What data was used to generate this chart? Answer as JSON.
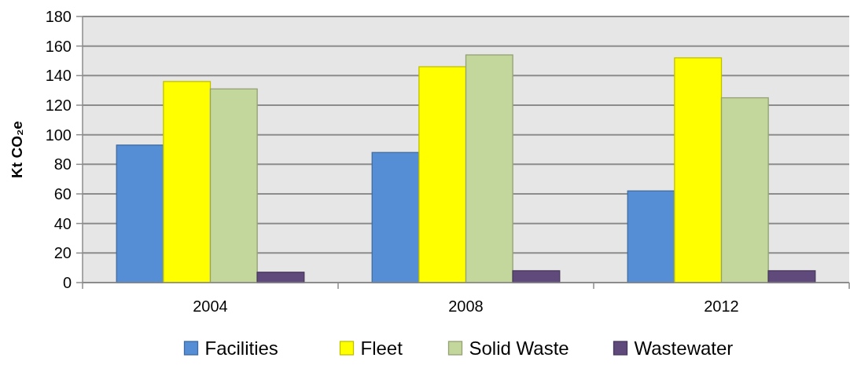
{
  "chart_data": {
    "type": "bar",
    "ylabel": "Kt CO₂e",
    "categories": [
      "2004",
      "2008",
      "2012"
    ],
    "series": [
      {
        "name": "Facilities",
        "color": "#558ed5",
        "values": [
          93,
          88,
          62
        ]
      },
      {
        "name": "Fleet",
        "color": "#ffff00",
        "values": [
          136,
          146,
          152
        ]
      },
      {
        "name": "Solid Waste",
        "color": "#c3d69b",
        "values": [
          131,
          154,
          125
        ]
      },
      {
        "name": "Wastewater",
        "color": "#604a7b",
        "values": [
          7,
          8,
          8
        ]
      }
    ],
    "ylim": [
      0,
      180
    ],
    "yticks": [
      0,
      20,
      40,
      60,
      80,
      100,
      120,
      140,
      160,
      180
    ],
    "grid": "y",
    "legend": "bottom"
  }
}
